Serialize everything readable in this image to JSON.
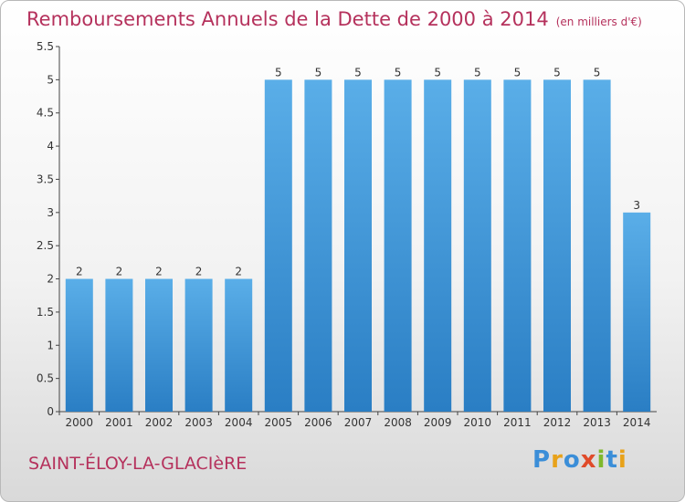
{
  "title": "Remboursements Annuels de la Dette de 2000 à 2014",
  "unit": "(en milliers d'€)",
  "place": "SAINT-ÉLOY-LA-GLACIèRE",
  "logo": {
    "letters": [
      "P",
      "r",
      "o",
      "x",
      "i",
      "t",
      "i"
    ],
    "colors": [
      "#3b8ed8",
      "#e8a21a",
      "#3b8ed8",
      "#e04b2a",
      "#7fb82c",
      "#3b8ed8",
      "#e8a21a"
    ]
  },
  "colors": {
    "bar_light": "#5aaee8",
    "bar_dark": "#2a7ec4",
    "title": "#b5315c"
  },
  "chart_data": {
    "type": "bar",
    "categories": [
      "2000",
      "2001",
      "2002",
      "2003",
      "2004",
      "2005",
      "2006",
      "2007",
      "2008",
      "2009",
      "2010",
      "2011",
      "2012",
      "2013",
      "2014"
    ],
    "values": [
      2,
      2,
      2,
      2,
      2,
      5,
      5,
      5,
      5,
      5,
      5,
      5,
      5,
      5,
      3
    ],
    "value_labels": [
      "2",
      "2",
      "2",
      "2",
      "2",
      "5",
      "5",
      "5",
      "5",
      "5",
      "5",
      "5",
      "5",
      "5",
      "3"
    ],
    "title": "Remboursements Annuels de la Dette de 2000 à 2014",
    "xlabel": "",
    "ylabel": "",
    "ylim": [
      0,
      5.5
    ],
    "yticks": [
      0,
      0.5,
      1,
      1.5,
      2,
      2.5,
      3,
      3.5,
      4,
      4.5,
      5,
      5.5
    ],
    "ytick_labels": [
      "0",
      "0.5",
      "1",
      "1.5",
      "2",
      "2.5",
      "3",
      "3.5",
      "4",
      "4.5",
      "5",
      "5.5"
    ],
    "grid": false,
    "legend": "none"
  }
}
